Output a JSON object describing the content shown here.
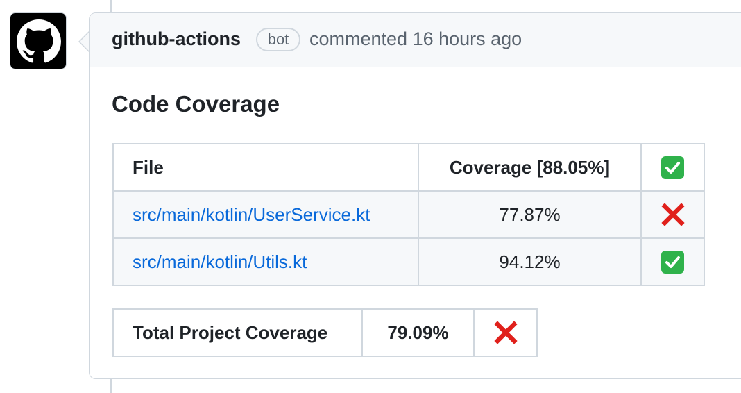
{
  "comment": {
    "author": "github-actions",
    "badge": "bot",
    "meta": "commented 16 hours ago"
  },
  "report": {
    "title": "Code Coverage",
    "table": {
      "headers": {
        "file": "File",
        "coverage": "Coverage [88.05%]",
        "status_icon": "check-icon"
      },
      "rows": [
        {
          "file": "src/main/kotlin/UserService.kt",
          "coverage": "77.87%",
          "status_icon": "cross-icon"
        },
        {
          "file": "src/main/kotlin/Utils.kt",
          "coverage": "94.12%",
          "status_icon": "check-icon"
        }
      ]
    },
    "total": {
      "label": "Total Project Coverage",
      "value": "79.09%",
      "status_icon": "cross-icon"
    }
  },
  "colors": {
    "link": "#0969da",
    "check": "#2fb24b",
    "cross": "#e0201b",
    "border": "#d0d7de"
  }
}
